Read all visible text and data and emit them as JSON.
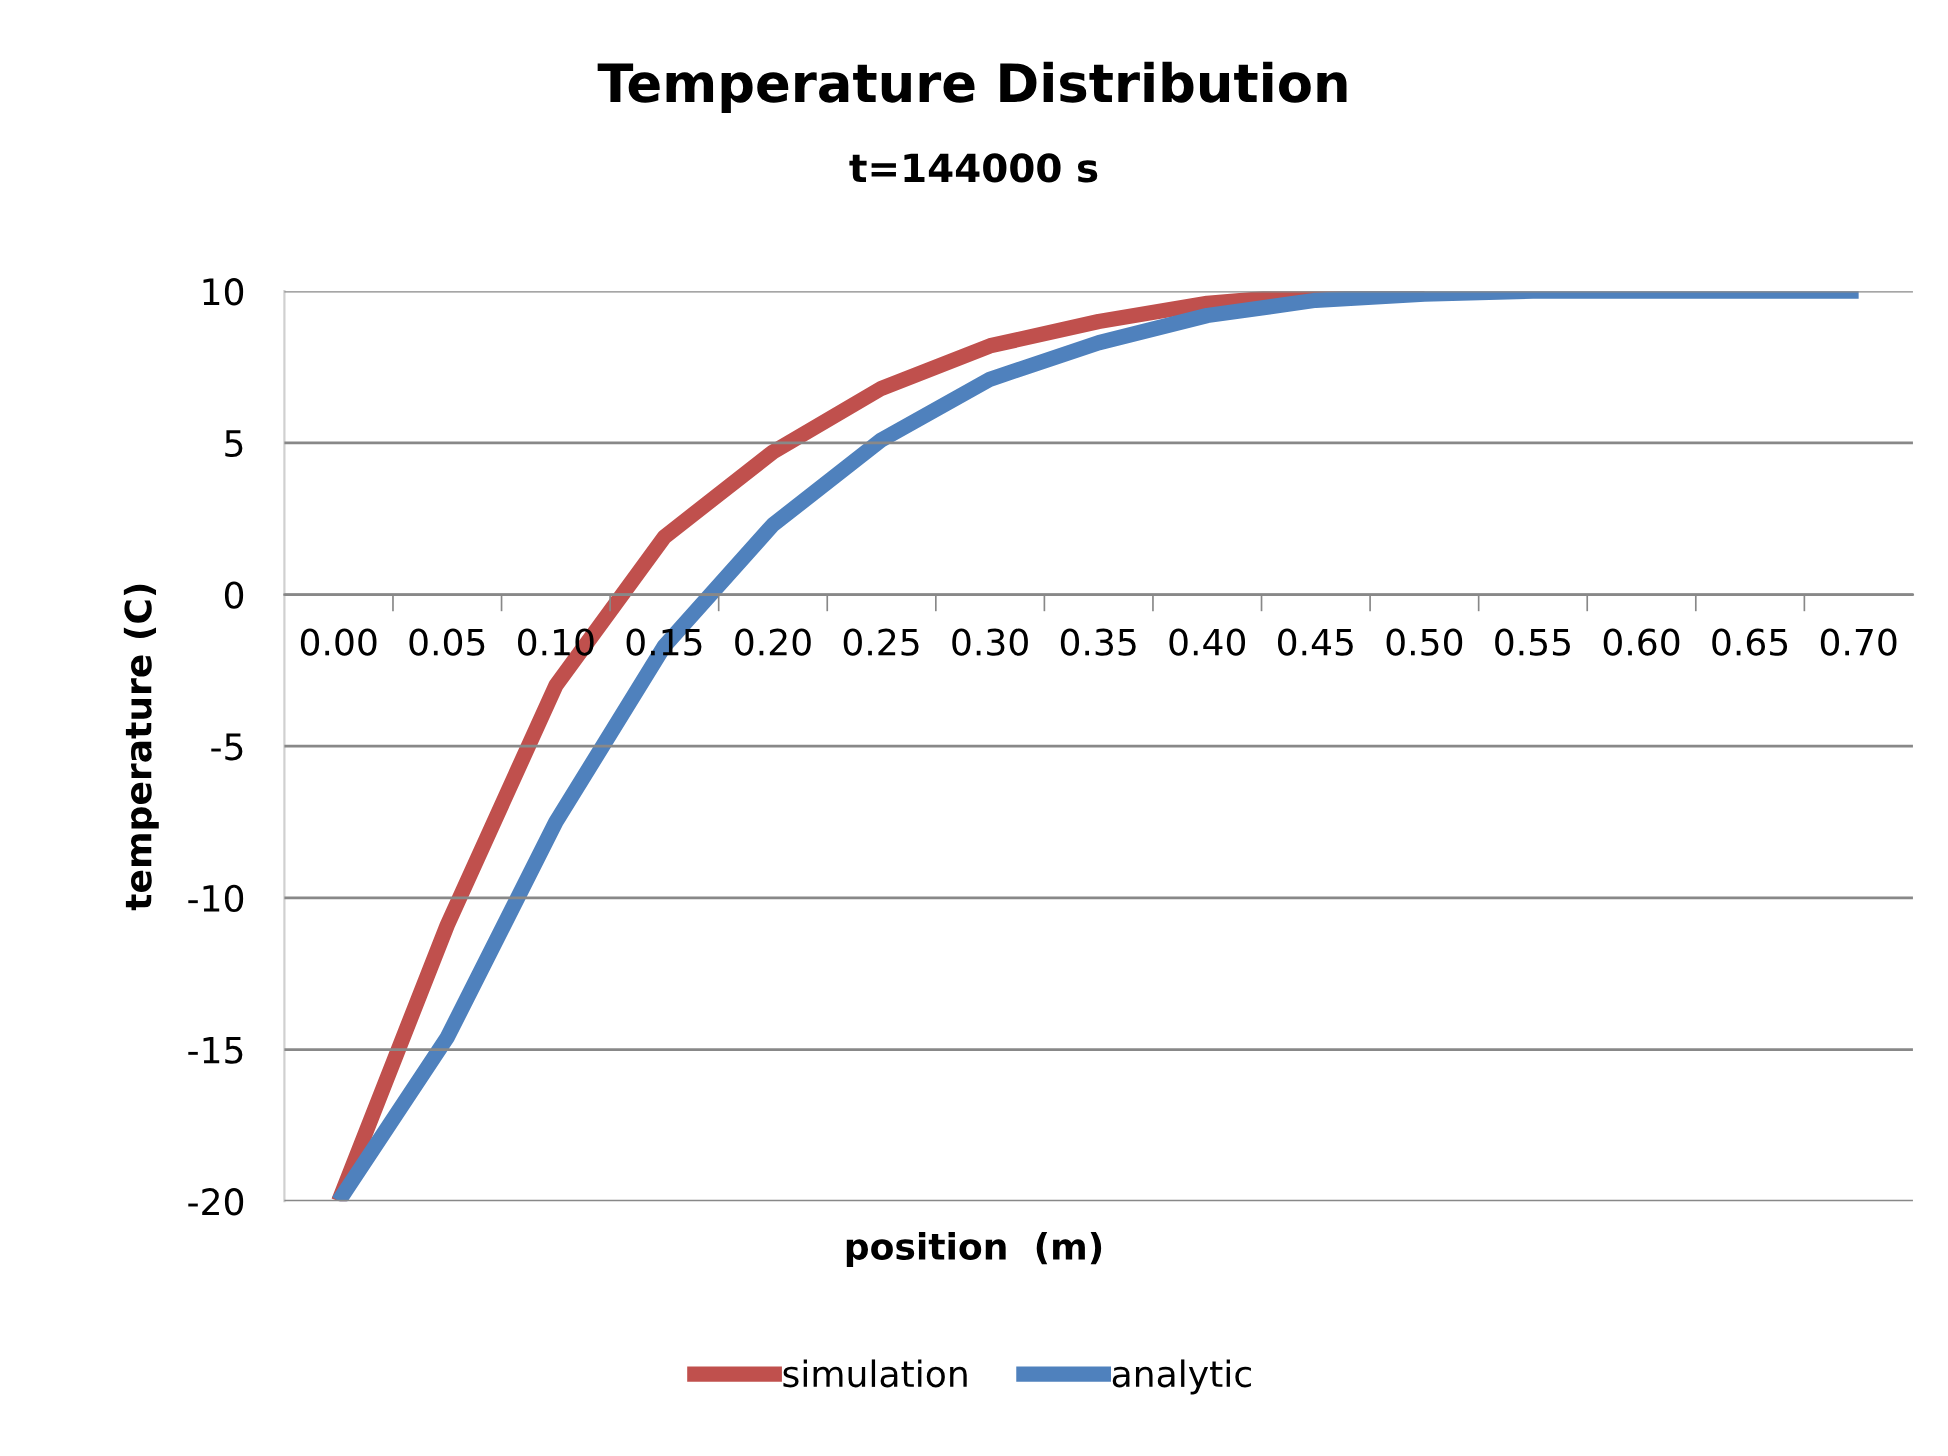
{
  "chart_data": {
    "type": "line",
    "title": "Temperature Distribution",
    "subtitle": "t=144000 s",
    "xlabel": "position  (m)",
    "ylabel": "temperature (C)",
    "categories": [
      "0.00",
      "0.05",
      "0.10",
      "0.15",
      "0.20",
      "0.25",
      "0.30",
      "0.35",
      "0.40",
      "0.45",
      "0.50",
      "0.55",
      "0.60",
      "0.65",
      "0.70"
    ],
    "series": [
      {
        "name": "simulation",
        "color": "#c0504d",
        "values": [
          -20,
          -10.9,
          -3.0,
          1.9,
          4.7,
          6.8,
          8.2,
          9.0,
          9.6,
          9.9,
          10,
          null,
          null,
          null,
          null
        ]
      },
      {
        "name": "analytic",
        "color": "#4f81bd",
        "values": [
          -20,
          -14.6,
          -7.5,
          -1.7,
          2.3,
          5.1,
          7.1,
          8.3,
          9.2,
          9.7,
          9.9,
          10,
          10,
          10,
          10
        ]
      }
    ],
    "ylim": [
      -20,
      10
    ],
    "yticks": [
      -20,
      -15,
      -10,
      -5,
      0,
      5,
      10
    ],
    "grid": "y",
    "legend": "bottom",
    "marker": "none",
    "line_style": "solid"
  }
}
